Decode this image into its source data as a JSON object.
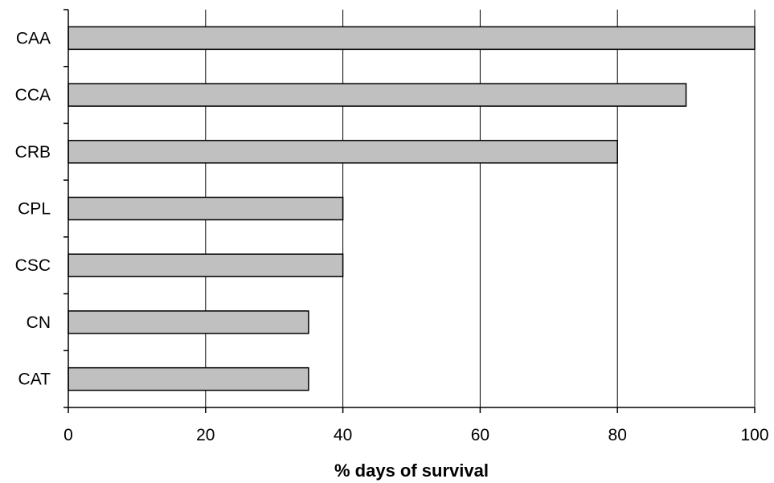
{
  "chart_data": {
    "type": "bar",
    "orientation": "horizontal",
    "title": "",
    "xlabel": "% days of survival",
    "ylabel": "",
    "categories": [
      "CAA",
      "CCA",
      "CRB",
      "CPL",
      "CSC",
      "CN",
      "CAT"
    ],
    "values": [
      100,
      90,
      80,
      40,
      40,
      35,
      35
    ],
    "xlim": [
      0,
      100
    ],
    "xticks": [
      0,
      20,
      40,
      60,
      80,
      100
    ],
    "xtick_labels": [
      "0",
      "20",
      "40",
      "60",
      "80",
      "100"
    ],
    "grid": "vertical",
    "legend": "none",
    "colors": {
      "bar_fill": "#c0c0c0",
      "bar_stroke": "#000000",
      "grid": "#000000",
      "axis": "#000000"
    }
  }
}
